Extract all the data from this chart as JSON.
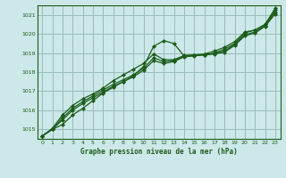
{
  "background_color": "#cce8e8",
  "grid_color": "#99bbbb",
  "line_color": "#1a5c1a",
  "title": "Graphe pression niveau de la mer (hPa)",
  "xlim": [
    -0.5,
    23.5
  ],
  "ylim": [
    1014.5,
    1021.5
  ],
  "yticks": [
    1015,
    1016,
    1017,
    1018,
    1019,
    1020,
    1021
  ],
  "xticks": [
    0,
    1,
    2,
    3,
    4,
    5,
    6,
    7,
    8,
    9,
    10,
    11,
    12,
    13,
    14,
    15,
    16,
    17,
    18,
    19,
    20,
    21,
    22,
    23
  ],
  "series": [
    {
      "x": [
        0,
        1,
        2,
        3,
        4,
        5,
        6,
        7,
        8,
        9,
        10,
        11,
        12,
        13,
        14,
        15,
        16,
        17,
        18,
        19,
        20,
        21,
        22,
        23
      ],
      "y": [
        1014.65,
        1015.0,
        1015.25,
        1015.75,
        1016.1,
        1016.5,
        1016.9,
        1017.2,
        1017.5,
        1017.8,
        1018.3,
        1019.35,
        1019.65,
        1019.5,
        1018.85,
        1018.9,
        1018.9,
        1019.0,
        1019.2,
        1019.5,
        1020.05,
        1020.2,
        1020.5,
        1021.35
      ]
    },
    {
      "x": [
        0,
        1,
        2,
        3,
        4,
        5,
        6,
        7,
        8,
        9,
        10,
        11,
        12,
        13,
        14,
        15,
        16,
        17,
        18,
        19,
        20,
        21,
        22,
        23
      ],
      "y": [
        1014.65,
        1015.0,
        1015.5,
        1016.0,
        1016.35,
        1016.65,
        1016.95,
        1017.25,
        1017.5,
        1017.75,
        1018.1,
        1018.6,
        1018.45,
        1018.55,
        1018.8,
        1018.85,
        1018.9,
        1018.95,
        1019.05,
        1019.4,
        1019.9,
        1020.05,
        1020.4,
        1021.05
      ]
    },
    {
      "x": [
        0,
        1,
        2,
        3,
        4,
        5,
        6,
        7,
        8,
        9,
        10,
        11,
        12,
        13,
        14,
        15,
        16,
        17,
        18,
        19,
        20,
        21,
        22,
        23
      ],
      "y": [
        1014.65,
        1015.0,
        1015.6,
        1016.1,
        1016.45,
        1016.75,
        1017.05,
        1017.35,
        1017.6,
        1017.85,
        1018.2,
        1018.75,
        1018.55,
        1018.6,
        1018.82,
        1018.87,
        1018.92,
        1018.97,
        1019.1,
        1019.45,
        1019.95,
        1020.1,
        1020.45,
        1021.15
      ]
    },
    {
      "x": [
        0,
        1,
        2,
        3,
        4,
        5,
        6,
        7,
        8,
        9,
        10,
        11,
        12,
        13,
        14,
        15,
        16,
        17,
        18,
        19,
        20,
        21,
        22,
        23
      ],
      "y": [
        1014.65,
        1015.05,
        1015.75,
        1016.25,
        1016.6,
        1016.85,
        1017.15,
        1017.55,
        1017.85,
        1018.15,
        1018.45,
        1018.95,
        1018.65,
        1018.65,
        1018.87,
        1018.9,
        1018.95,
        1019.1,
        1019.3,
        1019.6,
        1020.1,
        1020.2,
        1020.5,
        1021.25
      ]
    }
  ]
}
